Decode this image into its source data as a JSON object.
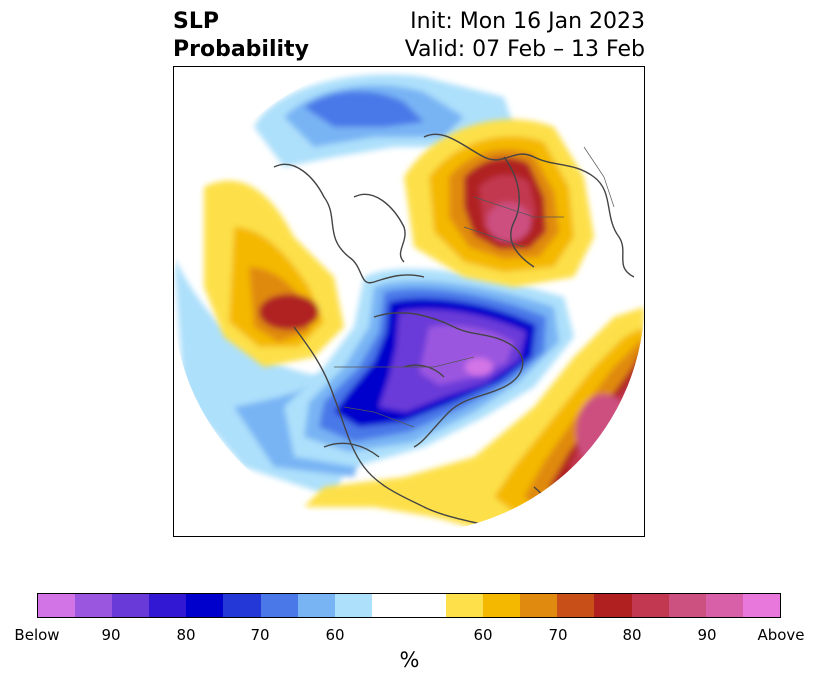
{
  "title": {
    "left_line1": "SLP",
    "left_line2": "Probability",
    "right_line1": "Init: Mon 16 Jan 2023",
    "right_line2": "Valid: 07 Feb – 13 Feb"
  },
  "colorbar": {
    "colors": [
      "#d374e6",
      "#9b56e0",
      "#6a3ad8",
      "#3218d2",
      "#0000cc",
      "#2438d8",
      "#4a78e8",
      "#78b4f4",
      "#ade0fb",
      "#ffffff",
      "#ffffff",
      "#fde04a",
      "#f4b800",
      "#e08a10",
      "#c85018",
      "#b02020",
      "#c23850",
      "#cc5080",
      "#d860a8",
      "#e878dc"
    ],
    "tick_labels": [
      "Below",
      "90",
      "80",
      "70",
      "60",
      "60",
      "70",
      "80",
      "90",
      "Above"
    ],
    "unit_label": "%"
  }
}
